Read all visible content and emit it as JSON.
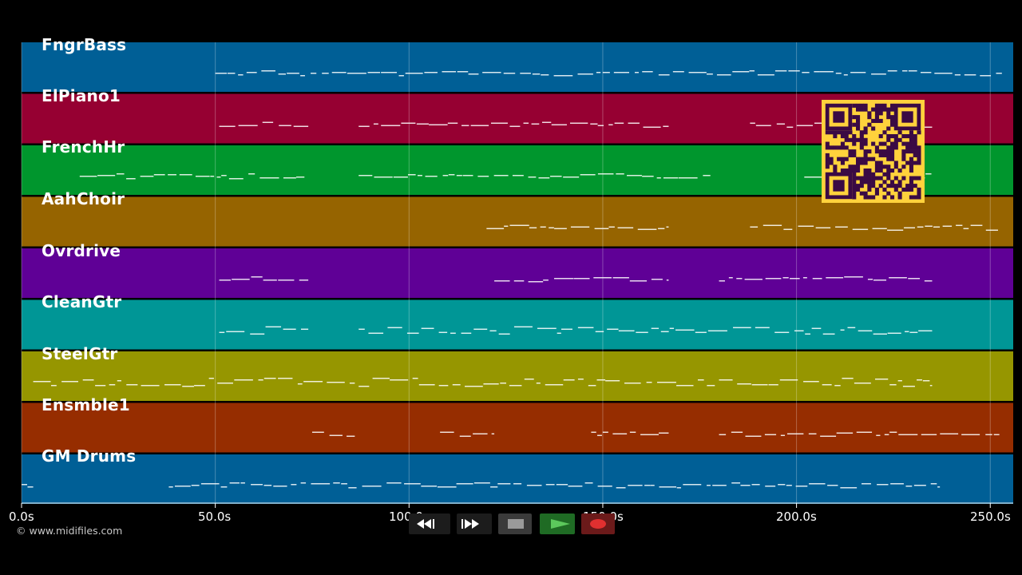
{
  "tracks": [
    {
      "name": "FngrBass",
      "color": "#005f96"
    },
    {
      "name": "ElPiano1",
      "color": "#960032"
    },
    {
      "name": "FrenchHr",
      "color": "#00962d"
    },
    {
      "name": "AahChoir",
      "color": "#966400"
    },
    {
      "name": "Ovrdrive",
      "color": "#5f0096"
    },
    {
      "name": "CleanGtr",
      "color": "#009696"
    },
    {
      "name": "SteelGtr",
      "color": "#969600"
    },
    {
      "name": "Ensmble1",
      "color": "#962d00"
    },
    {
      "name": "GM Drums",
      "color": "#005f96"
    }
  ],
  "timeline": {
    "unit": "s",
    "ticks": [
      {
        "value": 0,
        "label": "0.0s"
      },
      {
        "value": 50,
        "label": "50.0s"
      },
      {
        "value": 100,
        "label": "100.0s"
      },
      {
        "value": 150,
        "label": "150.0s"
      },
      {
        "value": 200,
        "label": "200.0s"
      },
      {
        "value": 250,
        "label": "250.0s"
      }
    ],
    "end": 256
  },
  "copyright": "© www.midifiles.com",
  "transport": {
    "rewind_icon": "rewind-icon",
    "fast_forward_icon": "fast-forward-icon",
    "stop_icon": "stop-icon",
    "play_icon": "play-icon",
    "record_icon": "record-icon",
    "colors": {
      "play": "#1f6b24",
      "record": "#6b1a1a",
      "stop": "#3a3a3a",
      "nav": "#1c1c1c"
    }
  },
  "qr_code": {
    "color": "#ffd23c",
    "dark": "#3a0a44"
  }
}
